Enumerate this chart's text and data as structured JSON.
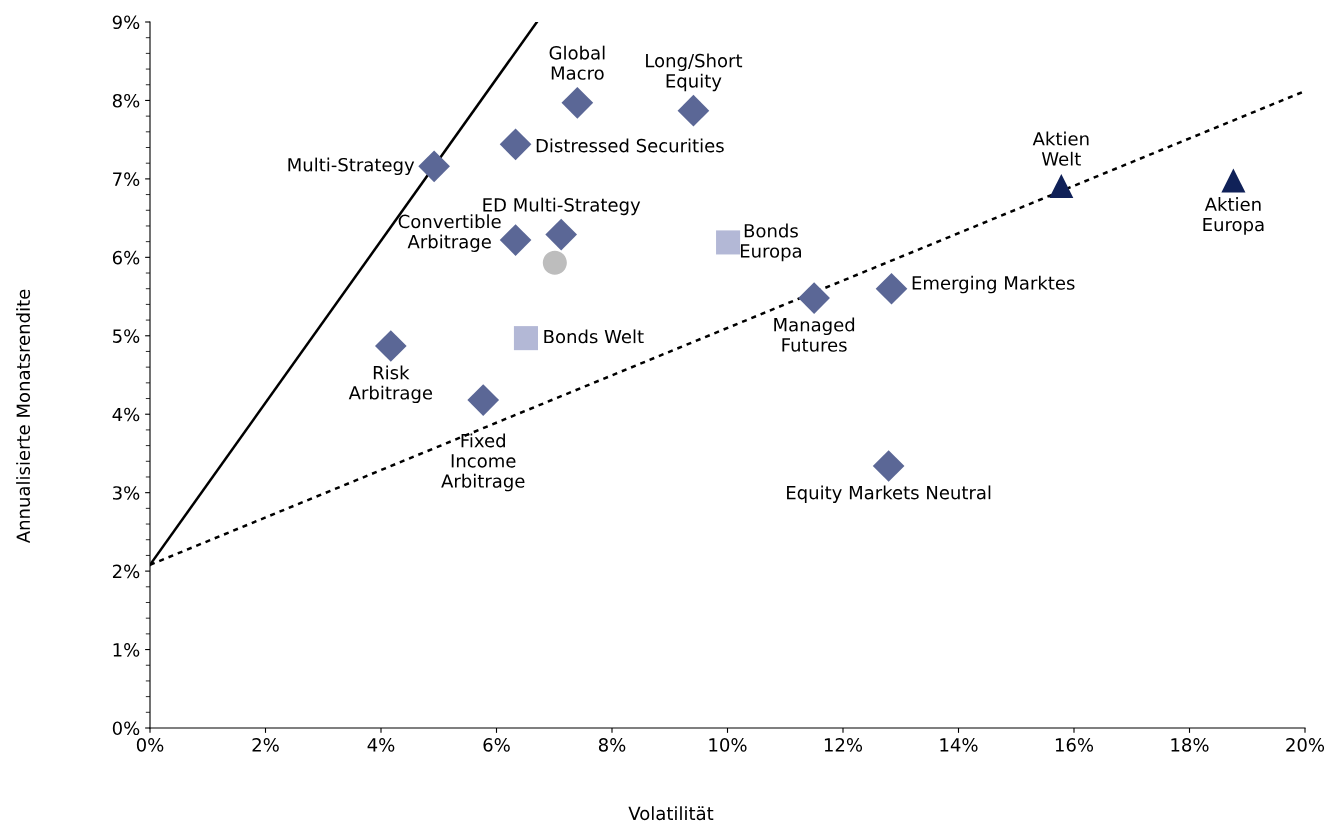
{
  "chart_data": {
    "type": "scatter",
    "xlabel": "Volatilität",
    "ylabel": "Annualisierte Monatsrendite",
    "grid": false,
    "legend": false,
    "xlim": [
      0,
      20
    ],
    "ylim": [
      0,
      9
    ],
    "xticks": [
      {
        "value": 0,
        "label": "0%"
      },
      {
        "value": 2,
        "label": "2%"
      },
      {
        "value": 4,
        "label": "4%"
      },
      {
        "value": 6,
        "label": "6%"
      },
      {
        "value": 8,
        "label": "8%"
      },
      {
        "value": 10,
        "label": "10%"
      },
      {
        "value": 12,
        "label": "12%"
      },
      {
        "value": 14,
        "label": "14%"
      },
      {
        "value": 16,
        "label": "16%"
      },
      {
        "value": 18,
        "label": "18%"
      },
      {
        "value": 20,
        "label": "20%"
      }
    ],
    "yticks": [
      {
        "value": 0,
        "label": "0%"
      },
      {
        "value": 1,
        "label": "1%"
      },
      {
        "value": 2,
        "label": "2%"
      },
      {
        "value": 3,
        "label": "3%"
      },
      {
        "value": 4,
        "label": "4%"
      },
      {
        "value": 5,
        "label": "5%"
      },
      {
        "value": 6,
        "label": "6%"
      },
      {
        "value": 7,
        "label": "7%"
      },
      {
        "value": 8,
        "label": "8%"
      },
      {
        "value": 9,
        "label": "9%"
      }
    ],
    "series": [
      {
        "type": "line",
        "color": "#000000",
        "line_style": "solid",
        "marker": "none",
        "x": [
          0,
          6.7
        ],
        "values": [
          2.08,
          9
        ]
      },
      {
        "type": "line",
        "color": "#000000",
        "line_style": "dotted",
        "marker": "none",
        "x": [
          0,
          20
        ],
        "values": [
          2.08,
          8.12
        ]
      },
      {
        "color": "#5b6796",
        "marker": "diamond",
        "x": [
          4.92,
          6.33,
          7.4,
          9.41,
          6.33,
          7.12,
          4.17,
          5.77,
          11.5,
          12.84,
          12.79
        ],
        "values": [
          7.16,
          7.44,
          7.97,
          7.87,
          6.22,
          6.29,
          4.87,
          4.18,
          5.48,
          5.6,
          3.34
        ]
      },
      {
        "color": "#b3b8d6",
        "marker": "square",
        "x": [
          10.01,
          6.51
        ],
        "values": [
          6.19,
          4.97
        ]
      },
      {
        "color": "#bdbdbd",
        "marker": "circle",
        "x": [
          7.01
        ],
        "values": [
          5.93
        ]
      },
      {
        "color": "#102158",
        "marker": "triangle",
        "x": [
          15.78,
          18.76
        ],
        "values": [
          6.91,
          6.98
        ]
      }
    ],
    "annotations": [
      {
        "text": "Multi-Strategy",
        "x": 4.92,
        "y": 7.16
      },
      {
        "text": "Distressed Securities",
        "x": 6.33,
        "y": 7.44
      },
      {
        "text": "Global\nMacro",
        "x": 7.4,
        "y": 7.97
      },
      {
        "text": "Long/Short\nEquity",
        "x": 9.41,
        "y": 7.87
      },
      {
        "text": "Convertible\nArbitrage",
        "x": 6.33,
        "y": 6.22
      },
      {
        "text": "ED Multi-Strategy",
        "x": 7.12,
        "y": 6.29
      },
      {
        "text": "Risk\nArbitrage",
        "x": 4.17,
        "y": 4.87
      },
      {
        "text": "Fixed\nIncome\nArbitrage",
        "x": 5.77,
        "y": 4.18
      },
      {
        "text": "Managed\nFutures",
        "x": 11.5,
        "y": 5.48
      },
      {
        "text": "Emerging Marktes",
        "x": 12.84,
        "y": 5.6
      },
      {
        "text": "Equity Markets Neutral",
        "x": 12.79,
        "y": 3.34
      },
      {
        "text": "Bonds\nEuropa",
        "x": 10.01,
        "y": 6.19
      },
      {
        "text": "Bonds Welt",
        "x": 6.51,
        "y": 4.97
      },
      {
        "text": "Aktien\nWelt",
        "x": 15.78,
        "y": 6.91
      },
      {
        "text": "Aktien\nEuropa",
        "x": 18.76,
        "y": 6.98
      }
    ]
  }
}
